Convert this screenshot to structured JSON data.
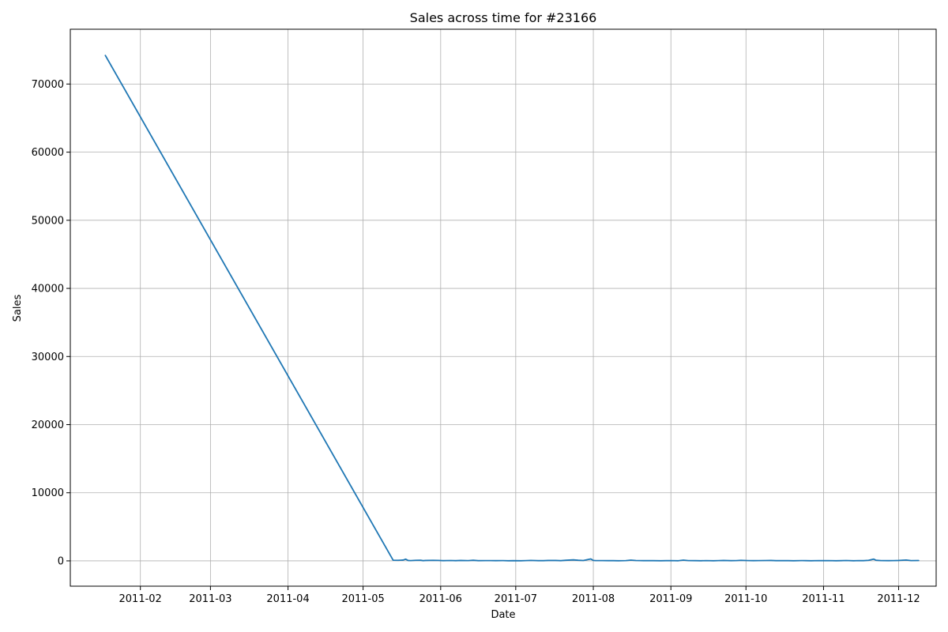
{
  "chart_data": {
    "type": "line",
    "title": "Sales across time for #23166",
    "xlabel": "Date",
    "ylabel": "Sales",
    "x_ticks": [
      "2011-02",
      "2011-03",
      "2011-04",
      "2011-05",
      "2011-06",
      "2011-07",
      "2011-08",
      "2011-09",
      "2011-10",
      "2011-11",
      "2011-12"
    ],
    "y_ticks": [
      0,
      10000,
      20000,
      30000,
      40000,
      50000,
      60000,
      70000
    ],
    "xlim": [
      "2011-01-04",
      "2011-12-16"
    ],
    "ylim": [
      -3716,
      78046
    ],
    "grid": true,
    "series_color": "#1f77b4",
    "series": [
      {
        "x": [
          "2011-01-18",
          "2011-05-13",
          "2011-05-15",
          "2011-05-17",
          "2011-05-18",
          "2011-05-19",
          "2011-05-20",
          "2011-05-22",
          "2011-05-24",
          "2011-05-25",
          "2011-05-26",
          "2011-05-29",
          "2011-05-31",
          "2011-06-02",
          "2011-06-05",
          "2011-06-07",
          "2011-06-09",
          "2011-06-12",
          "2011-06-14",
          "2011-06-16",
          "2011-06-19",
          "2011-06-21",
          "2011-06-23",
          "2011-06-26",
          "2011-06-28",
          "2011-06-30",
          "2011-07-03",
          "2011-07-05",
          "2011-07-07",
          "2011-07-10",
          "2011-07-12",
          "2011-07-14",
          "2011-07-17",
          "2011-07-19",
          "2011-07-21",
          "2011-07-24",
          "2011-07-26",
          "2011-07-28",
          "2011-07-31",
          "2011-08-01",
          "2011-08-02",
          "2011-08-04",
          "2011-08-07",
          "2011-08-09",
          "2011-08-11",
          "2011-08-14",
          "2011-08-16",
          "2011-08-18",
          "2011-08-21",
          "2011-08-23",
          "2011-08-25",
          "2011-08-28",
          "2011-08-30",
          "2011-09-01",
          "2011-09-04",
          "2011-09-06",
          "2011-09-08",
          "2011-09-11",
          "2011-09-13",
          "2011-09-15",
          "2011-09-18",
          "2011-09-20",
          "2011-09-22",
          "2011-09-25",
          "2011-09-27",
          "2011-09-29",
          "2011-10-02",
          "2011-10-04",
          "2011-10-06",
          "2011-10-09",
          "2011-10-11",
          "2011-10-13",
          "2011-10-16",
          "2011-10-18",
          "2011-10-20",
          "2011-10-23",
          "2011-10-25",
          "2011-10-27",
          "2011-10-30",
          "2011-11-01",
          "2011-11-03",
          "2011-11-06",
          "2011-11-08",
          "2011-11-10",
          "2011-11-13",
          "2011-11-15",
          "2011-11-17",
          "2011-11-19",
          "2011-11-21",
          "2011-11-22",
          "2011-11-24",
          "2011-11-27",
          "2011-11-29",
          "2011-12-01",
          "2011-12-02",
          "2011-12-04",
          "2011-12-06",
          "2011-12-09"
        ],
        "y": [
          74200,
          100,
          80,
          120,
          250,
          60,
          40,
          80,
          90,
          30,
          60,
          80,
          70,
          30,
          50,
          30,
          60,
          40,
          90,
          30,
          40,
          40,
          30,
          40,
          20,
          30,
          20,
          40,
          70,
          30,
          30,
          60,
          60,
          30,
          90,
          150,
          90,
          50,
          280,
          70,
          40,
          40,
          30,
          30,
          20,
          40,
          110,
          50,
          30,
          40,
          30,
          20,
          30,
          40,
          20,
          110,
          40,
          30,
          20,
          40,
          20,
          40,
          60,
          30,
          40,
          80,
          40,
          30,
          40,
          50,
          60,
          30,
          40,
          30,
          20,
          40,
          30,
          20,
          40,
          30,
          40,
          20,
          30,
          50,
          20,
          40,
          30,
          80,
          260,
          90,
          40,
          30,
          40,
          60,
          80,
          130,
          40,
          50
        ]
      }
    ]
  }
}
